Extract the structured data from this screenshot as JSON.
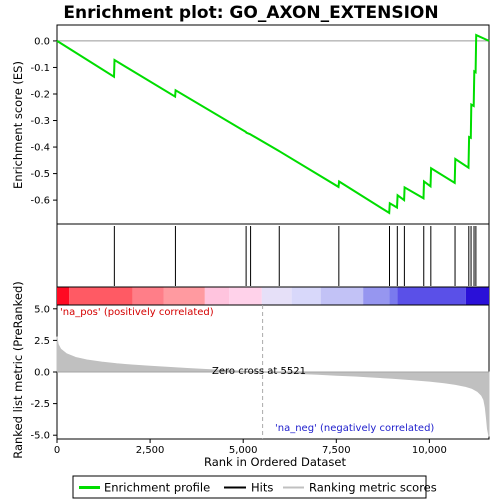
{
  "title": "Enrichment plot: GO_AXON_EXTENSION",
  "colors": {
    "es_line": "#00dd00",
    "hit": "#000000",
    "metric_fill": "#c0c0c0",
    "zero_line": "#aaaaaa",
    "pos_label": "#d40000",
    "neg_label": "#1d1dcc"
  },
  "chart_data": {
    "type": "line",
    "x_max": 11600,
    "x_ticks": [
      0,
      2500,
      5000,
      7500,
      10000
    ],
    "x_tick_labels": [
      "0",
      "2,500",
      "5,000",
      "7,500",
      "10,000"
    ],
    "xlabel": "Rank in Ordered Dataset",
    "es_panel": {
      "ylabel": "Enrichment score (ES)",
      "ylim": [
        -0.69,
        0.06
      ],
      "y_ticks": [
        0.0,
        -0.1,
        -0.2,
        -0.3,
        -0.4,
        -0.5,
        -0.6
      ],
      "y_tick_labels": [
        "0.0",
        "-0.1",
        "-0.2",
        "-0.3",
        "-0.4",
        "-0.5",
        "-0.6"
      ],
      "profile": {
        "x": [
          0,
          1530,
          1545,
          3170,
          3185,
          5070,
          5085,
          5190,
          5205,
          5960,
          5975,
          7560,
          7575,
          8920,
          8935,
          9130,
          9145,
          9320,
          9335,
          9840,
          9855,
          10030,
          10045,
          10680,
          10695,
          11050,
          11065,
          11110,
          11125,
          11190,
          11205,
          11240,
          11255,
          11600
        ],
        "y": [
          0.0,
          -0.135,
          -0.072,
          -0.21,
          -0.186,
          -0.343,
          -0.346,
          -0.352,
          -0.353,
          -0.415,
          -0.416,
          -0.55,
          -0.53,
          -0.648,
          -0.612,
          -0.628,
          -0.582,
          -0.6,
          -0.552,
          -0.593,
          -0.53,
          -0.548,
          -0.48,
          -0.535,
          -0.445,
          -0.478,
          -0.362,
          -0.365,
          -0.24,
          -0.245,
          -0.115,
          -0.118,
          0.022,
          0.0
        ]
      }
    },
    "hits": [
      1540,
      3180,
      5078,
      5198,
      5968,
      7568,
      8928,
      9138,
      9328,
      9848,
      10038,
      10688,
      11058,
      11118,
      11198,
      11248
    ],
    "rank_colorbar": {
      "segments": [
        {
          "from": 0,
          "to": 330,
          "color": "#ff0a22"
        },
        {
          "from": 330,
          "to": 2030,
          "color": "#ff5a64"
        },
        {
          "from": 2030,
          "to": 2870,
          "color": "#ff7e88"
        },
        {
          "from": 2870,
          "to": 3970,
          "color": "#ff9aa0"
        },
        {
          "from": 3970,
          "to": 4620,
          "color": "#ffc4de"
        },
        {
          "from": 4620,
          "to": 5500,
          "color": "#ffd2ea"
        },
        {
          "from": 5500,
          "to": 6300,
          "color": "#e6e0f8"
        },
        {
          "from": 6300,
          "to": 7080,
          "color": "#d8d8fa"
        },
        {
          "from": 7080,
          "to": 8220,
          "color": "#c2c2f6"
        },
        {
          "from": 8220,
          "to": 8920,
          "color": "#9696f0"
        },
        {
          "from": 8920,
          "to": 9140,
          "color": "#7a7aee"
        },
        {
          "from": 9140,
          "to": 10980,
          "color": "#5a50e8"
        },
        {
          "from": 10980,
          "to": 11600,
          "color": "#2a10d8"
        }
      ]
    },
    "metric_panel": {
      "ylabel": "Ranked list metric (PreRanked)",
      "ylim": [
        -5.3,
        5.3
      ],
      "y_ticks": [
        5.0,
        2.5,
        0.0,
        -2.5,
        -5.0
      ],
      "y_tick_labels": [
        "5.0",
        "2.5",
        "0.0",
        "-2.5",
        "-5.0"
      ],
      "curve": {
        "x": [
          0,
          30,
          100,
          250,
          500,
          800,
          1200,
          1600,
          2000,
          2500,
          3000,
          3500,
          4000,
          4500,
          5000,
          5521,
          6000,
          6500,
          7000,
          7500,
          8000,
          8500,
          9000,
          9500,
          10000,
          10400,
          10700,
          10950,
          11150,
          11300,
          11400,
          11460,
          11500,
          11530,
          11560,
          11600
        ],
        "y": [
          2.8,
          2.2,
          1.8,
          1.45,
          1.15,
          0.95,
          0.78,
          0.65,
          0.55,
          0.45,
          0.36,
          0.28,
          0.2,
          0.13,
          0.06,
          0.0,
          -0.06,
          -0.12,
          -0.18,
          -0.25,
          -0.32,
          -0.4,
          -0.5,
          -0.6,
          -0.72,
          -0.85,
          -0.98,
          -1.12,
          -1.3,
          -1.55,
          -1.85,
          -2.2,
          -2.8,
          -3.6,
          -4.5,
          -5.1
        ]
      },
      "zero_cross_rank": 5521,
      "zero_cross_label": "Zero cross at 5521",
      "pos_label": "'na_pos' (positively correlated)",
      "neg_label": "'na_neg' (negatively correlated)"
    }
  },
  "legend": {
    "items": [
      {
        "label": "Enrichment profile",
        "icon": "green-line-icon"
      },
      {
        "label": "Hits",
        "icon": "black-line-icon"
      },
      {
        "label": "Ranking metric scores",
        "icon": "gray-line-icon"
      }
    ]
  }
}
